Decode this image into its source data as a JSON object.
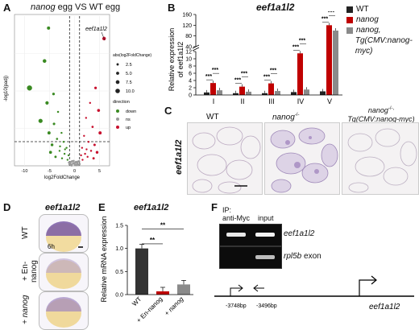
{
  "panels": {
    "A": "A",
    "B": "B",
    "C": "C",
    "D": "D",
    "E": "E",
    "F": "F"
  },
  "panelA": {
    "title_ital": "nanog",
    "title_rest": " egg VS WT egg",
    "ylabel": "-log10(padj)",
    "xlabel": "log2FoldChange",
    "annot": "eef1a1l2",
    "x_ticks": [
      "-10",
      "-5",
      "0",
      "5"
    ],
    "legend_size_title": "abs(log2FoldChange)",
    "legend_sizes": [
      "2.5",
      "5.0",
      "7.5",
      "10.0"
    ],
    "legend_dir_title": "direction",
    "legend_dirs": [
      "down",
      "ns",
      "up"
    ],
    "colors": {
      "down": "#3a8a22",
      "ns": "#9a9a9a",
      "up": "#c8102e"
    },
    "chart_data": {
      "type": "scatter",
      "xlabel": "log2FoldChange",
      "ylabel": "-log10(padj)",
      "xlim": [
        -12,
        7
      ],
      "groups": [
        {
          "name": "down",
          "points": [
            [
              -5.2,
              92
            ],
            [
              -6,
              70
            ],
            [
              -9,
              52
            ],
            [
              -4.2,
              48
            ],
            [
              -5.5,
              42
            ],
            [
              -3.3,
              36
            ],
            [
              -6.8,
              30
            ],
            [
              -4.1,
              28
            ],
            [
              -2.6,
              22
            ],
            [
              -5.1,
              22
            ],
            [
              -3.5,
              18
            ],
            [
              -2.2,
              16
            ],
            [
              -4.5,
              14
            ],
            [
              -1.6,
              12
            ],
            [
              -3.0,
              10
            ],
            [
              -2.0,
              8
            ],
            [
              -1.2,
              7
            ],
            [
              -3.8,
              6
            ],
            [
              -2.5,
              5
            ],
            [
              -1.4,
              4
            ],
            [
              -4.8,
              9
            ],
            [
              -2.9,
              13
            ],
            [
              -1.9,
              11
            ]
          ]
        },
        {
          "name": "up",
          "points": [
            [
              5.9,
              85
            ],
            [
              4.2,
              52
            ],
            [
              3.1,
              42
            ],
            [
              4.8,
              37
            ],
            [
              2.3,
              32
            ],
            [
              3.6,
              26
            ],
            [
              5.1,
              22
            ],
            [
              1.9,
              20
            ],
            [
              2.8,
              16
            ],
            [
              4.0,
              14
            ],
            [
              1.5,
              12
            ],
            [
              3.3,
              10
            ],
            [
              2.1,
              8
            ],
            [
              1.3,
              7
            ],
            [
              2.6,
              6
            ],
            [
              3.8,
              5
            ],
            [
              1.6,
              4
            ],
            [
              4.5,
              9
            ],
            [
              2.4,
              11
            ]
          ]
        },
        {
          "name": "ns",
          "points": [
            [
              -0.5,
              3
            ],
            [
              0.2,
              2
            ],
            [
              0.6,
              1
            ],
            [
              -0.8,
              2.5
            ],
            [
              0.9,
              3
            ],
            [
              -1,
              1
            ],
            [
              0.1,
              0.5
            ],
            [
              -0.3,
              1.5
            ],
            [
              0.5,
              2
            ],
            [
              -0.7,
              0.8
            ],
            [
              1.0,
              1.2
            ],
            [
              -0.2,
              3.2
            ],
            [
              0.4,
              0.4
            ],
            [
              -1.1,
              2.2
            ],
            [
              0.8,
              0.6
            ],
            [
              0,
              1.8
            ],
            [
              -0.6,
              0.3
            ],
            [
              0.3,
              2.6
            ],
            [
              -0.9,
              1.4
            ],
            [
              0.7,
              2.8
            ]
          ]
        }
      ]
    }
  },
  "panelB": {
    "title": "eef1a1l2",
    "ylabel": "Relative expression",
    "ylabel2": "of eef1a1l2",
    "y_ticks": [
      "0",
      "2",
      "4",
      "6",
      "8",
      "10",
      "12",
      "40",
      "80",
      "120",
      "160"
    ],
    "legend": [
      {
        "label": "WT",
        "color": "#222222",
        "ital": false
      },
      {
        "label": "nanog",
        "color": "#c00000",
        "ital": true
      },
      {
        "label": "nanog,",
        "color": "#8a8a8a",
        "ital": true
      },
      {
        "label": "Tg(CMV:nanog-myc)",
        "color": "",
        "ital": true
      }
    ],
    "sig": "***",
    "chart_data": {
      "type": "bar",
      "categories": [
        "I",
        "II",
        "III",
        "IV",
        "V"
      ],
      "series": [
        {
          "name": "WT",
          "values": [
            0.7,
            0.5,
            0.5,
            0.8,
            1.0
          ]
        },
        {
          "name": "nanog",
          "values": [
            3.3,
            2.3,
            3.2,
            11.5,
            120
          ]
        },
        {
          "name": "nanog, Tg(CMV:nanog-myc)",
          "values": [
            1.3,
            0.9,
            1.1,
            1.5,
            100
          ]
        }
      ],
      "axis_break": [
        12,
        40
      ]
    }
  },
  "panelC": {
    "labels": [
      "WT",
      "nanog",
      "nanog",
      "Tg(CMV:nanog-myc)"
    ],
    "sup": "-/-",
    "sup2": "-/-,",
    "side": "eef1a1l2"
  },
  "panelD": {
    "title": "eef1a1l2",
    "time": "6h",
    "rows": [
      "WT",
      "+ En-nanog",
      "+ nanog"
    ]
  },
  "panelE": {
    "title": "eef1a1l2",
    "ylabel": "Relative mRNA expression",
    "y_ticks": [
      "0.0",
      "0.5",
      "1.0",
      "1.5"
    ],
    "sig": "**",
    "chart_data": {
      "type": "bar",
      "categories": [
        "WT",
        "+ En-nanog",
        "+ nanog"
      ],
      "values": [
        1.0,
        0.07,
        0.22
      ],
      "ylim": [
        0,
        1.5
      ]
    }
  },
  "panelF": {
    "ip": "IP:",
    "ip2": "anti-Myc",
    "input": "input",
    "band1": "eef1a1l2",
    "band2": "rpl5b",
    "band2_rest": " exon",
    "pos1": "-3748bp",
    "pos2": "-3496bp",
    "gene": "eef1a1l2"
  }
}
